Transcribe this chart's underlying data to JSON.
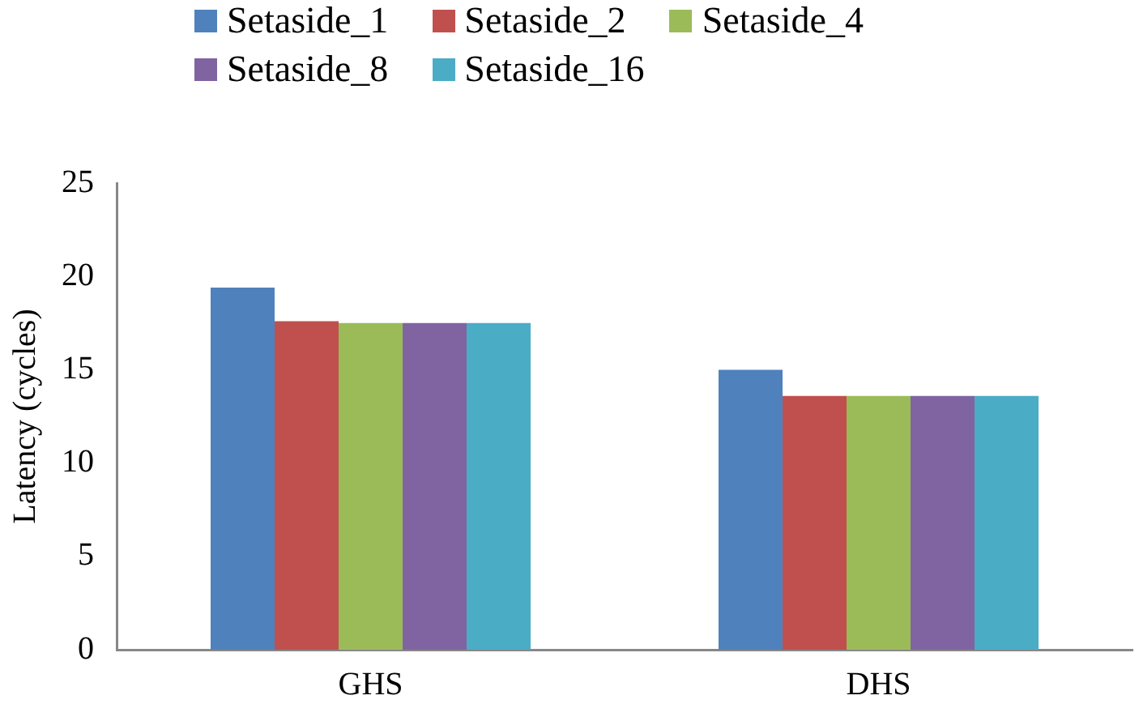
{
  "chart_data": {
    "type": "bar",
    "ylabel": "Latency (cycles)",
    "categories": [
      "GHS",
      "DHS"
    ],
    "series": [
      {
        "name": "Setaside_1",
        "color": "#4f81bd",
        "values": [
          19.4,
          15.0
        ]
      },
      {
        "name": "Setaside_2",
        "color": "#c0504d",
        "values": [
          17.6,
          13.6
        ]
      },
      {
        "name": "Setaside_4",
        "color": "#9bbb59",
        "values": [
          17.5,
          13.6
        ]
      },
      {
        "name": "Setaside_8",
        "color": "#8064a2",
        "values": [
          17.5,
          13.6
        ]
      },
      {
        "name": "Setaside_16",
        "color": "#4bacc6",
        "values": [
          17.5,
          13.6
        ]
      }
    ],
    "ylim": [
      0,
      25
    ],
    "yticks": [
      0,
      5,
      10,
      15,
      20,
      25
    ],
    "grid": false,
    "legend": "top"
  }
}
